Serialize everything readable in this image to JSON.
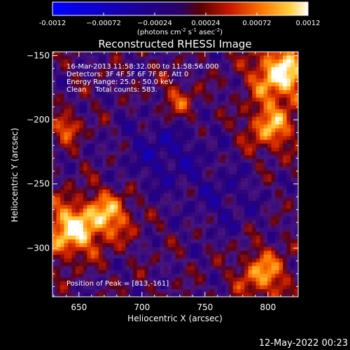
{
  "chart_data": {
    "type": "heatmap",
    "title": "Reconstructed RHESSI Image",
    "xlabel": "Heliocentric X (arcsec)",
    "ylabel": "Heliocentric Y (arcsec)",
    "xlim": [
      629,
      824
    ],
    "ylim": [
      -338,
      -147
    ],
    "x_ticks": [
      650,
      700,
      750,
      800
    ],
    "y_ticks": [
      -150,
      -200,
      -250,
      -300
    ],
    "colorbar": {
      "min": -0.0012,
      "max": 0.0012,
      "tick_values": [
        -0.0012,
        -0.00072,
        -0.00024,
        0.00024,
        0.00072,
        0.0012
      ],
      "tick_labels": [
        "-0.0012",
        "−0.00072",
        "−0.00024",
        "0.00024",
        "0.00072",
        "0.0012"
      ],
      "unit_label": "(photons cm",
      "unit_exp1": "-2",
      "unit_mid1": " s",
      "unit_exp2": "-1",
      "unit_mid2": " asec",
      "unit_exp3": "-2",
      "unit_end": ")"
    },
    "annotations": {
      "time_range": "16-Mar-2013 11:58:32.000 to 11:58:56.000",
      "detectors": "Detectors: 3F 4F 5F 6F 7F 8F, Att 0",
      "energy": "Energy Range: 25.0 - 50.0 keV",
      "method": "Clean    Total counts: 583.",
      "peak": "Position of Peak = [813,-161]"
    },
    "grid": false,
    "colormap": "red-temperature"
  },
  "footer_date": "12-May-2022 00:23"
}
